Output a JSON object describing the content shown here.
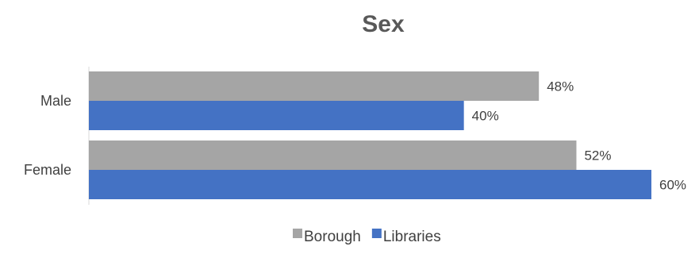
{
  "chart_data": {
    "type": "bar",
    "orientation": "horizontal",
    "title": "Sex",
    "categories": [
      "Male",
      "Female"
    ],
    "series": [
      {
        "name": "Borough",
        "values": [
          48,
          52
        ],
        "labels": [
          "48%",
          "52%"
        ],
        "color": "#a5a5a5"
      },
      {
        "name": "Libraries",
        "values": [
          40,
          60
        ],
        "labels": [
          "40%",
          "60%"
        ],
        "color": "#4472c4"
      }
    ],
    "xlim": [
      0,
      60
    ],
    "xlabel": "",
    "ylabel": "",
    "grid": false,
    "legend_position": "bottom"
  }
}
